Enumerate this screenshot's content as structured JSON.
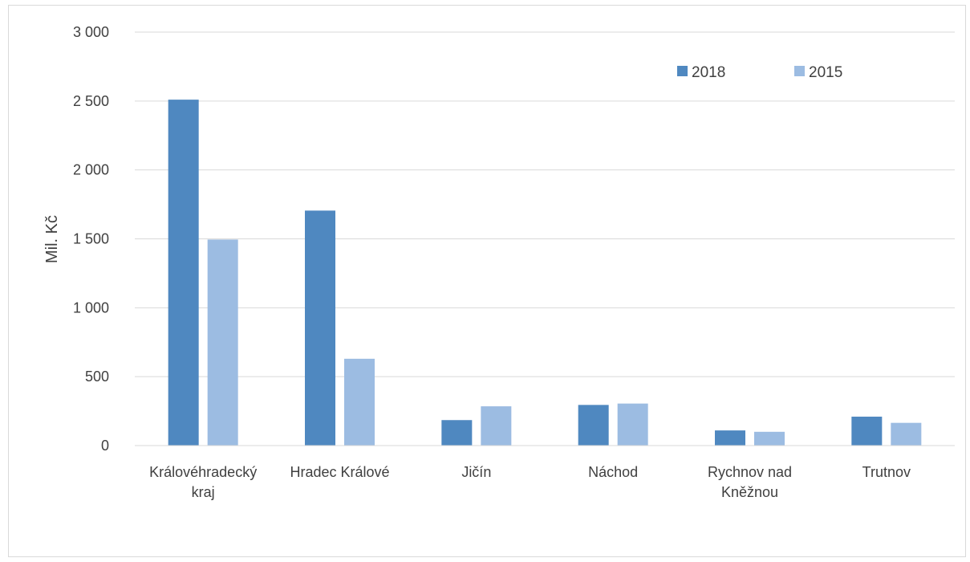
{
  "chart_data": {
    "type": "bar",
    "title": "",
    "xlabel": "",
    "ylabel": "Mil. Kč",
    "ylim": [
      0,
      3000
    ],
    "yticks": [
      0,
      500,
      1000,
      1500,
      2000,
      2500,
      3000
    ],
    "ytick_labels": [
      "0",
      "500",
      "1 000",
      "1 500",
      "2 000",
      "2 500",
      "3 000"
    ],
    "categories": [
      [
        "Královéhradecký",
        "kraj"
      ],
      [
        "Hradec Králové"
      ],
      [
        "Jičín"
      ],
      [
        "Náchod"
      ],
      [
        "Rychnov nad",
        "Kněžnou"
      ],
      [
        "Trutnov"
      ]
    ],
    "series": [
      {
        "name": "2018",
        "color": "#4f88c0",
        "values": [
          2510,
          1705,
          185,
          295,
          110,
          210
        ]
      },
      {
        "name": "2015",
        "color": "#9cbce2",
        "values": [
          1495,
          630,
          285,
          305,
          100,
          165
        ]
      }
    ],
    "grid": true,
    "legend_position": "top-right"
  }
}
